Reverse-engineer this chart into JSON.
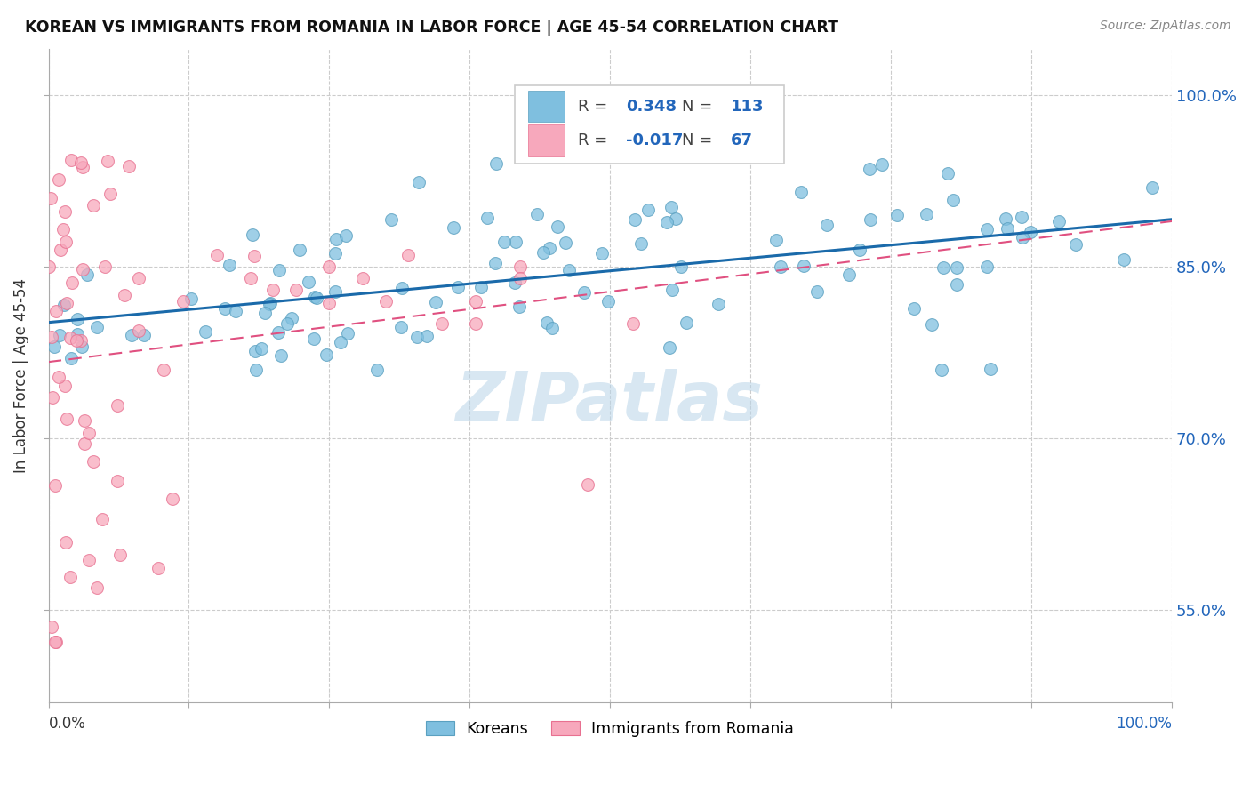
{
  "title": "KOREAN VS IMMIGRANTS FROM ROMANIA IN LABOR FORCE | AGE 45-54 CORRELATION CHART",
  "source": "Source: ZipAtlas.com",
  "ylabel": "In Labor Force | Age 45-54",
  "ytick_values": [
    0.55,
    0.7,
    0.85,
    1.0
  ],
  "xlim": [
    0.0,
    1.0
  ],
  "ylim": [
    0.47,
    1.04
  ],
  "r_korean": 0.348,
  "n_korean": 113,
  "r_romania": -0.017,
  "n_romania": 67,
  "korean_color": "#7fbfdf",
  "romanian_color": "#f7a8bc",
  "korean_edge_color": "#5aa0c0",
  "romanian_edge_color": "#e87090",
  "korean_line_color": "#1a6aaa",
  "romanian_line_color": "#e05080",
  "watermark": "ZIPatlas",
  "legend_korean": "Koreans",
  "legend_romania": "Immigrants from Romania"
}
